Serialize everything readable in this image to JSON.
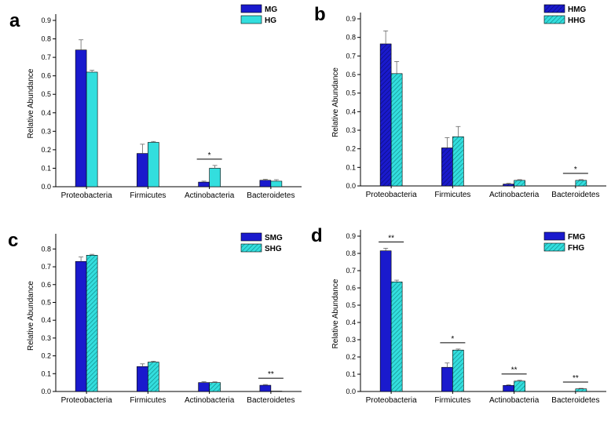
{
  "chart_data": [
    {
      "type": "bar",
      "panel_label": "a",
      "categories": [
        "Proteobacteria",
        "Firmicutes",
        "Actinobacteria",
        "Bacteroidetes"
      ],
      "series": [
        {
          "name": "MG",
          "values": [
            0.74,
            0.18,
            0.025,
            0.035
          ],
          "errors": [
            0.055,
            0.05,
            0.005,
            0.005
          ]
        },
        {
          "name": "HG",
          "values": [
            0.62,
            0.24,
            0.1,
            0.03
          ],
          "errors": [
            0.01,
            0.005,
            0.015,
            0.008
          ]
        }
      ],
      "significance": [
        {
          "category": 2,
          "label": "*"
        }
      ],
      "xlabel": "",
      "ylabel": "Relative Abundance",
      "ylim": [
        0,
        0.9
      ],
      "yticks": [
        "0.0",
        "0.1",
        "0.2",
        "0.3",
        "0.4",
        "0.5",
        "0.6",
        "0.7",
        "0.8",
        "0.9"
      ]
    },
    {
      "type": "bar",
      "panel_label": "b",
      "categories": [
        "Proteobacteria",
        "Firmicutes",
        "Actinobacteria",
        "Bacteroidetes"
      ],
      "series": [
        {
          "name": "HMG",
          "values": [
            0.765,
            0.205,
            0.01,
            0.0
          ],
          "errors": [
            0.07,
            0.055,
            0.004,
            0.0
          ]
        },
        {
          "name": "HHG",
          "values": [
            0.605,
            0.265,
            0.03,
            0.03
          ],
          "errors": [
            0.065,
            0.055,
            0.004,
            0.004
          ]
        }
      ],
      "significance": [
        {
          "category": 3,
          "label": "*"
        }
      ],
      "xlabel": "",
      "ylabel": "Relative Abundance",
      "ylim": [
        0,
        0.9
      ],
      "yticks": [
        "0.0",
        "0.1",
        "0.2",
        "0.3",
        "0.4",
        "0.5",
        "0.6",
        "0.7",
        "0.8",
        "0.9"
      ]
    },
    {
      "type": "bar",
      "panel_label": "c",
      "categories": [
        "Proteobacteria",
        "Firmicutes",
        "Actinobacteria",
        "Bacteroidetes"
      ],
      "series": [
        {
          "name": "SMG",
          "values": [
            0.73,
            0.14,
            0.05,
            0.035
          ],
          "errors": [
            0.025,
            0.015,
            0.005,
            0.004
          ]
        },
        {
          "name": "SHG",
          "values": [
            0.765,
            0.165,
            0.05,
            0.002
          ],
          "errors": [
            0.005,
            0.005,
            0.004,
            0.0
          ]
        }
      ],
      "significance": [
        {
          "category": 3,
          "label": "**"
        }
      ],
      "xlabel": "",
      "ylabel": "Relative Abundance",
      "ylim": [
        0,
        0.85
      ],
      "yticks": [
        "0.0",
        "0.1",
        "0.2",
        "0.3",
        "0.4",
        "0.5",
        "0.6",
        "0.7",
        "0.8"
      ]
    },
    {
      "type": "bar",
      "panel_label": "d",
      "categories": [
        "Proteobacteria",
        "Firmicutes",
        "Actinobacteria",
        "Bacteroidetes"
      ],
      "series": [
        {
          "name": "FMG",
          "values": [
            0.815,
            0.14,
            0.035,
            0.0
          ],
          "errors": [
            0.015,
            0.025,
            0.004,
            0.0
          ]
        },
        {
          "name": "FHG",
          "values": [
            0.635,
            0.24,
            0.06,
            0.015
          ],
          "errors": [
            0.01,
            0.006,
            0.005,
            0.003
          ]
        }
      ],
      "significance": [
        {
          "category": 0,
          "label": "**"
        },
        {
          "category": 1,
          "label": "*"
        },
        {
          "category": 2,
          "label": "**"
        },
        {
          "category": 3,
          "label": "**"
        }
      ],
      "xlabel": "",
      "ylabel": "Relative Abundance",
      "ylim": [
        0,
        0.9
      ],
      "yticks": [
        "0.0",
        "0.1",
        "0.2",
        "0.3",
        "0.4",
        "0.5",
        "0.6",
        "0.7",
        "0.8",
        "0.9"
      ]
    }
  ],
  "colors": {
    "series1": "#1a1acd",
    "series2": "#33dede",
    "hatch": "#0d8080",
    "axis": "#000000"
  }
}
